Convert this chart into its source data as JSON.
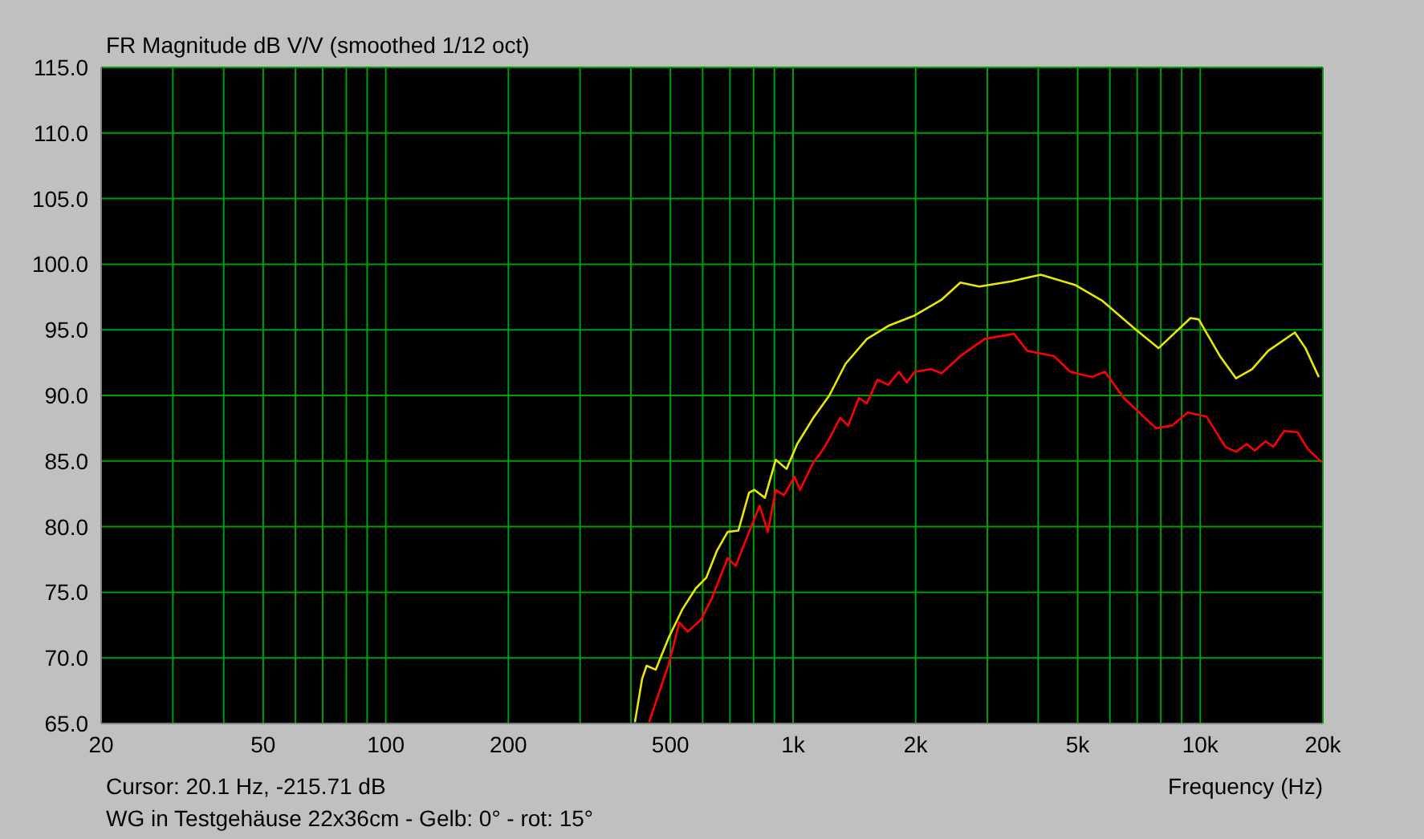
{
  "chart_data": {
    "type": "line",
    "title": "FR Magnitude dB V/V (smoothed 1/12 oct)",
    "xlabel": "Frequency (Hz)",
    "annotations": [
      "Cursor: 20.1 Hz, -215.71 dB",
      "WG in Testgehäuse 22x36cm - Gelb: 0° - rot: 15°"
    ],
    "log": "x",
    "grid": true,
    "legend": false,
    "marker": "none",
    "line_style": "solid",
    "xlim": [
      20,
      20000
    ],
    "xticks": [
      20,
      {
        "value": 30,
        "label": null
      },
      {
        "value": 40,
        "label": null
      },
      50,
      {
        "value": 60,
        "label": null
      },
      {
        "value": 70,
        "label": null
      },
      {
        "value": 80,
        "label": null
      },
      {
        "value": 90,
        "label": null
      },
      100,
      200,
      {
        "value": 300,
        "label": null
      },
      {
        "value": 400,
        "label": null
      },
      500,
      {
        "value": 600,
        "label": null
      },
      {
        "value": 700,
        "label": null
      },
      {
        "value": 800,
        "label": null
      },
      {
        "value": 900,
        "label": null
      },
      {
        "value": 1000,
        "label": "1k"
      },
      {
        "value": 2000,
        "label": "2k"
      },
      {
        "value": 3000,
        "label": null
      },
      {
        "value": 4000,
        "label": null
      },
      {
        "value": 5000,
        "label": "5k"
      },
      {
        "value": 6000,
        "label": null
      },
      {
        "value": 7000,
        "label": null
      },
      {
        "value": 8000,
        "label": null
      },
      {
        "value": 9000,
        "label": null
      },
      {
        "value": 10000,
        "label": "10k"
      },
      {
        "value": 20000,
        "label": "20k"
      }
    ],
    "ylim": [
      65,
      115
    ],
    "yticks": [
      {
        "value": 65,
        "label": "65.0"
      },
      {
        "value": 70,
        "label": "70.0"
      },
      {
        "value": 75,
        "label": "75.0"
      },
      {
        "value": 80,
        "label": "80.0"
      },
      {
        "value": 85,
        "label": "85.0"
      },
      {
        "value": 90,
        "label": "90.0"
      },
      {
        "value": 95,
        "label": "95.0"
      },
      {
        "value": 100,
        "label": "100.0"
      },
      {
        "value": 105,
        "label": "105.0"
      },
      {
        "value": 110,
        "label": "110.0"
      },
      {
        "value": 115,
        "label": "115.0"
      }
    ],
    "series": [
      {
        "color": "#e8e800",
        "x": [
          409,
          426,
          437,
          460,
          496,
          535,
          577,
          612,
          651,
          691,
          734,
          780,
          804,
          853,
          907,
          964,
          1024,
          1122,
          1228,
          1345,
          1518,
          1713,
          1991,
          2317,
          2577,
          2866,
          3436,
          4058,
          4943,
          5755,
          6893,
          7897,
          9464,
          9911,
          11177,
          12241,
          13400,
          14680,
          17070,
          18130,
          19550
        ],
        "values": [
          65.1,
          68.4,
          69.4,
          69.1,
          71.6,
          73.7,
          75.3,
          76.1,
          78.2,
          79.6,
          79.7,
          82.6,
          82.8,
          82.2,
          85.1,
          84.4,
          86.3,
          88.3,
          90.0,
          92.4,
          94.3,
          95.3,
          96.1,
          97.3,
          98.6,
          98.3,
          98.7,
          99.2,
          98.4,
          97.2,
          95.1,
          93.6,
          95.9,
          95.8,
          93.0,
          91.3,
          92.0,
          93.4,
          94.8,
          93.6,
          91.4
        ]
      },
      {
        "color": "#ff0000",
        "x": [
          443,
          467,
          496,
          526,
          551,
          594,
          631,
          691,
          723,
          780,
          828,
          867,
          907,
          950,
          1009,
          1040,
          1122,
          1174,
          1228,
          1305,
          1366,
          1451,
          1518,
          1612,
          1713,
          1820,
          1902,
          1991,
          2180,
          2317,
          2577,
          2953,
          3487,
          3759,
          4375,
          4794,
          5410,
          5834,
          6490,
          7784,
          8519,
          9317,
          10354,
          11513,
          12241,
          13006,
          13615,
          14450,
          15130,
          16070,
          17330,
          18400,
          19870
        ],
        "values": [
          65.1,
          67.2,
          69.6,
          72.7,
          72.0,
          72.9,
          74.5,
          77.6,
          77.0,
          79.6,
          81.6,
          79.6,
          82.8,
          82.4,
          83.8,
          82.8,
          84.9,
          85.7,
          86.7,
          88.3,
          87.7,
          89.8,
          89.4,
          91.2,
          90.8,
          91.8,
          91.0,
          91.8,
          92.0,
          91.7,
          93.0,
          94.3,
          94.7,
          93.4,
          93.0,
          91.8,
          91.4,
          91.8,
          89.8,
          87.5,
          87.7,
          88.7,
          88.4,
          86.1,
          85.7,
          86.3,
          85.8,
          86.5,
          86.1,
          87.3,
          87.2,
          85.9,
          84.9
        ]
      }
    ]
  }
}
